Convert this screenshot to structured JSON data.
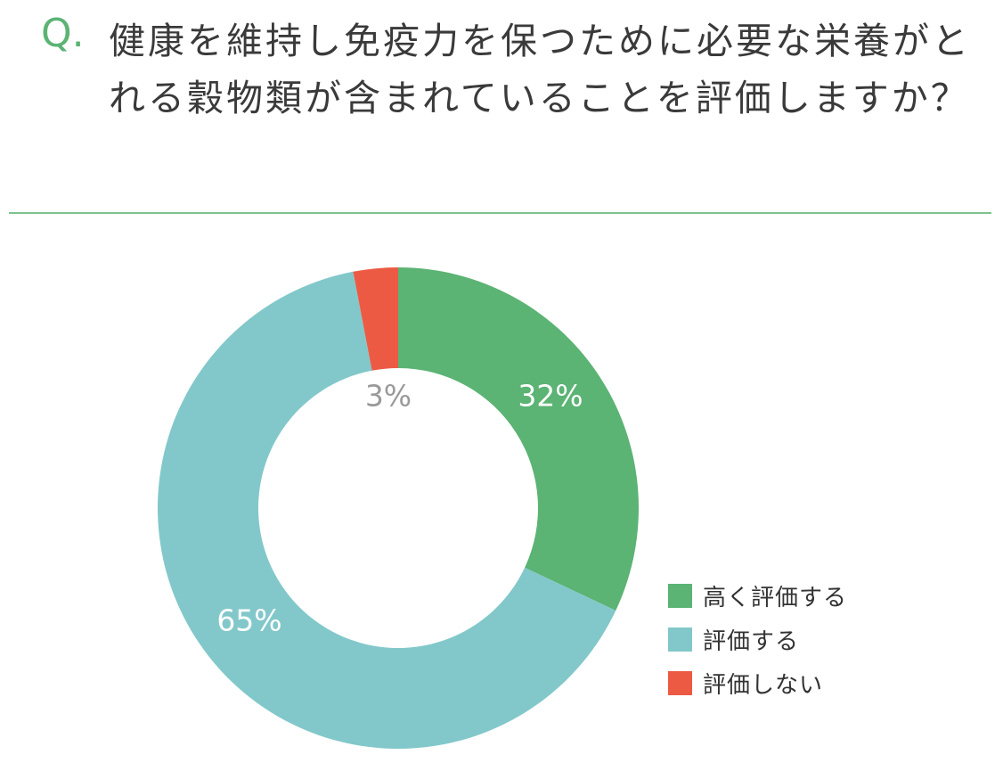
{
  "header": {
    "q_mark": "Q.",
    "question": "健康を維持し免疫力を保つために必要な栄養がとれる穀物類が含まれていることを評価しますか？"
  },
  "chart_data": {
    "type": "pie",
    "variant": "donut",
    "categories": [
      "高く評価する",
      "評価する",
      "評価しない"
    ],
    "values": [
      32,
      65,
      3
    ],
    "data_labels": [
      "32%",
      "65%",
      "3%"
    ],
    "colors": [
      "#5bb374",
      "#82c8ca",
      "#ec5a44"
    ],
    "label_colors": [
      "#ffffff",
      "#ffffff",
      "#9a9a9a"
    ],
    "start_angle": "top",
    "direction": "clockwise",
    "legend_position": "bottom-right"
  }
}
